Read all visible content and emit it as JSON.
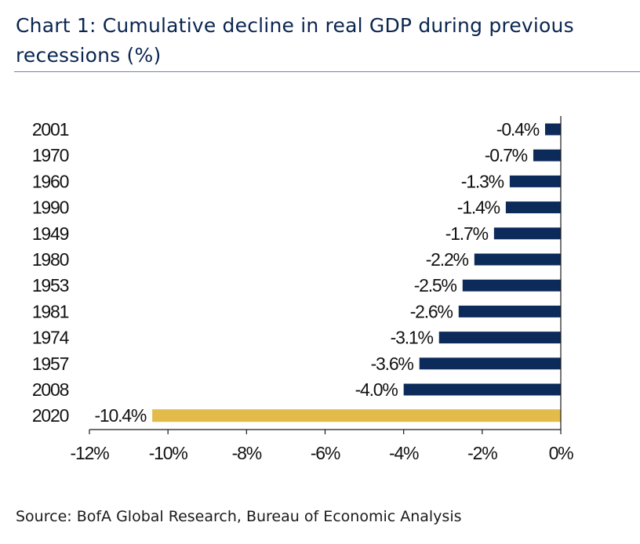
{
  "title": "Chart 1: Cumulative decline in real GDP during previous recessions (%)",
  "source": "Source: BofA Global Research, Bureau of Economic Analysis",
  "colors": {
    "bar": "#0c2a5a",
    "highlight": "#e2bb4a",
    "axis": "#1a1a1a",
    "title": "#0a2550"
  },
  "chart_data": {
    "type": "bar",
    "orientation": "horizontal",
    "title": "Chart 1: Cumulative decline in real GDP during previous recessions (%)",
    "xlabel": "",
    "ylabel": "",
    "xlim": [
      -12,
      0
    ],
    "xticks": [
      -12,
      -10,
      -8,
      -6,
      -4,
      -2,
      0
    ],
    "xtick_labels": [
      "-12%",
      "-10%",
      "-8%",
      "-6%",
      "-4%",
      "-2%",
      "0%"
    ],
    "grid": false,
    "legend": "none",
    "categories": [
      "2001",
      "1970",
      "1960",
      "1990",
      "1949",
      "1980",
      "1953",
      "1981",
      "1974",
      "1957",
      "2008",
      "2020"
    ],
    "values": [
      -0.4,
      -0.7,
      -1.3,
      -1.4,
      -1.7,
      -2.2,
      -2.5,
      -2.6,
      -3.1,
      -3.6,
      -4.0,
      -10.4
    ],
    "data_labels": [
      "-0.4%",
      "-0.7%",
      "-1.3%",
      "-1.4%",
      "-1.7%",
      "-2.2%",
      "-2.5%",
      "-2.6%",
      "-3.1%",
      "-3.6%",
      "-4.0%",
      "-10.4%"
    ],
    "highlight_category": "2020"
  }
}
